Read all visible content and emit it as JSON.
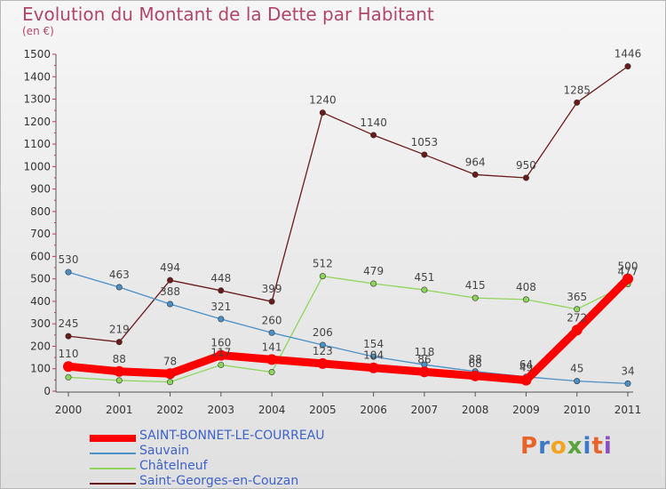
{
  "page": {
    "title": "Evolution du Montant de la Dette par Habitant",
    "subtitle": "(en €)",
    "brand": "Proxiti"
  },
  "colors": {
    "title": "#b0476a",
    "legend_text": "#3d62c7",
    "brand": [
      "#e8632a",
      "#3d79c7",
      "#f2a41c",
      "#5aa33d",
      "#3d79c7",
      "#e8632a",
      "#8a4fbf"
    ]
  },
  "chart_data": {
    "type": "line",
    "title": "Evolution du Montant de la Dette par Habitant",
    "subtitle": "(en €)",
    "xlabel": "",
    "ylabel": "",
    "x": [
      "2000",
      "2001",
      "2002",
      "2003",
      "2004",
      "2005",
      "2006",
      "2007",
      "2008",
      "2009",
      "2010",
      "2011"
    ],
    "ylim": [
      0,
      1500
    ],
    "yticks": [
      0,
      100,
      200,
      300,
      400,
      500,
      600,
      700,
      800,
      900,
      1000,
      1100,
      1200,
      1300,
      1400,
      1500
    ],
    "grid": false,
    "legend_position": "bottom-left",
    "series": [
      {
        "name": "SAINT-BONNET-LE-COURREAU",
        "color": "#ff0000",
        "values": [
          110,
          88,
          78,
          160,
          141,
          123,
          104,
          86,
          68,
          49,
          272,
          500
        ],
        "labels": [
          "110",
          "88",
          "78",
          "160",
          "141",
          "123",
          "104",
          "86",
          "68",
          "49",
          "272",
          "500"
        ]
      },
      {
        "name": "Sauvain",
        "color": "#4a90c8",
        "values": [
          530,
          463,
          388,
          321,
          260,
          206,
          154,
          118,
          88,
          64,
          45,
          34
        ],
        "labels": [
          "530",
          "463",
          "388",
          "321",
          "260",
          "206",
          "154",
          "118",
          "88",
          "64",
          "45",
          "34"
        ]
      },
      {
        "name": "Châtelneuf",
        "color": "#8ed65a",
        "values": [
          62,
          48,
          41,
          117,
          85,
          512,
          479,
          451,
          415,
          408,
          365,
          477
        ],
        "labels": [
          "",
          "",
          "",
          "117",
          "",
          "512",
          "479",
          "451",
          "415",
          "408",
          "365",
          "477"
        ]
      },
      {
        "name": "Saint-Georges-en-Couzan",
        "color": "#6b1a1a",
        "values": [
          245,
          219,
          494,
          448,
          399,
          1240,
          1140,
          1053,
          964,
          950,
          1285,
          1446
        ],
        "labels": [
          "245",
          "219",
          "494",
          "448",
          "399",
          "1240",
          "1140",
          "1053",
          "964",
          "950",
          "1285",
          "1446"
        ]
      }
    ]
  }
}
